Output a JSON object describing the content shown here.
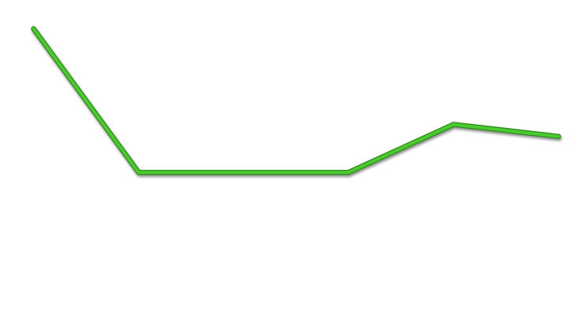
{
  "chart_data": {
    "type": "line",
    "x": [
      1,
      2,
      3,
      4,
      5,
      6
    ],
    "series": [
      {
        "values": [
          100,
          50,
          50,
          50,
          66.7,
          62.5
        ],
        "color": "#4cc92e"
      }
    ],
    "xlim": [
      0.68,
      6.1
    ],
    "ylim": [
      0,
      110
    ],
    "grid": false,
    "legend": "none",
    "axes_visible": false,
    "line_style": "thick with drop shadow"
  }
}
